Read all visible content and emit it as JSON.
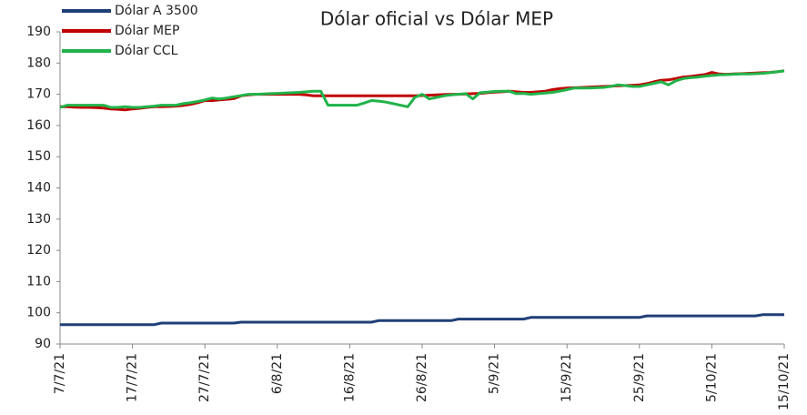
{
  "chart_data": {
    "type": "line",
    "title": "Dólar oficial vs Dólar MEP",
    "categories": [
      "7/7/21",
      null,
      null,
      null,
      null,
      null,
      null,
      null,
      null,
      null,
      "17/7/21",
      null,
      null,
      null,
      null,
      null,
      null,
      null,
      null,
      null,
      "27/7/21",
      null,
      null,
      null,
      null,
      null,
      null,
      null,
      null,
      null,
      "6/8/21",
      null,
      null,
      null,
      null,
      null,
      null,
      null,
      null,
      null,
      "16/8/21",
      null,
      null,
      null,
      null,
      null,
      null,
      null,
      null,
      null,
      "26/8/21",
      null,
      null,
      null,
      null,
      null,
      null,
      null,
      null,
      null,
      "5/9/21",
      null,
      null,
      null,
      null,
      null,
      null,
      null,
      null,
      null,
      "15/9/21",
      null,
      null,
      null,
      null,
      null,
      null,
      null,
      null,
      null,
      "25/9/21",
      null,
      null,
      null,
      null,
      null,
      null,
      null,
      null,
      null,
      "5/10/21",
      null,
      null,
      null,
      null,
      null,
      null,
      null,
      null,
      null,
      "15/10/21"
    ],
    "series": [
      {
        "name": "Dólar A 3500",
        "color": "#1f3f77",
        "values": [
          96.2,
          96.2,
          96.2,
          96.2,
          96.2,
          96.2,
          96.2,
          96.2,
          96.2,
          96.2,
          96.2,
          96.2,
          96.2,
          96.2,
          96.7,
          96.7,
          96.7,
          96.7,
          96.7,
          96.7,
          96.7,
          96.7,
          96.7,
          96.7,
          96.7,
          97,
          97,
          97,
          97,
          97,
          97,
          97,
          97,
          97,
          97,
          97,
          97,
          97,
          97,
          97,
          97,
          97,
          97,
          97,
          97.5,
          97.5,
          97.5,
          97.5,
          97.5,
          97.5,
          97.5,
          97.5,
          97.5,
          97.5,
          97.5,
          98,
          98,
          98,
          98,
          98,
          98,
          98,
          98,
          98,
          98,
          98.5,
          98.5,
          98.5,
          98.5,
          98.5,
          98.5,
          98.5,
          98.5,
          98.5,
          98.5,
          98.5,
          98.5,
          98.5,
          98.5,
          98.5,
          98.5,
          99,
          99,
          99,
          99,
          99,
          99,
          99,
          99,
          99,
          99,
          99,
          99,
          99,
          99,
          99,
          99,
          99.4,
          99.4,
          99.4,
          99.4
        ]
      },
      {
        "name": "Dólar MEP",
        "color": "#c00000",
        "values": [
          166,
          166,
          165.9,
          165.8,
          165.8,
          165.7,
          165.6,
          165.3,
          165.2,
          165,
          165.3,
          165.5,
          165.8,
          166,
          166,
          166.1,
          166.2,
          166.4,
          166.8,
          167.3,
          168,
          168,
          168.2,
          168.4,
          168.6,
          169.5,
          169.8,
          170,
          170,
          170,
          170,
          170,
          170,
          170,
          169.8,
          169.5,
          169.5,
          169.5,
          169.5,
          169.5,
          169.5,
          169.5,
          169.5,
          169.5,
          169.5,
          169.5,
          169.5,
          169.5,
          169.5,
          169.5,
          169.6,
          169.7,
          169.8,
          169.9,
          170,
          170,
          170.1,
          170.2,
          170.3,
          170.5,
          170.7,
          170.8,
          171,
          170.8,
          170.6,
          170.6,
          170.8,
          171,
          171.5,
          171.8,
          172,
          172.1,
          172.2,
          172.3,
          172.4,
          172.5,
          172.6,
          172.7,
          172.8,
          172.9,
          173,
          173.4,
          174,
          174.5,
          174.6,
          175,
          175.5,
          175.7,
          176,
          176.3,
          177,
          176.5,
          176.4,
          176.5,
          176.6,
          176.7,
          176.8,
          176.9,
          177,
          177.2,
          177.5
        ]
      },
      {
        "name": "Dólar CCL",
        "color": "#21b34a",
        "values": [
          165.8,
          166.5,
          166.5,
          166.5,
          166.5,
          166.5,
          166.5,
          165.8,
          165.8,
          166,
          165.8,
          165.8,
          166,
          166.2,
          166.5,
          166.5,
          166.5,
          167,
          167.3,
          167.7,
          168.2,
          168.8,
          168.5,
          168.8,
          169.2,
          169.6,
          170,
          170,
          170.1,
          170.2,
          170.3,
          170.4,
          170.5,
          170.6,
          170.8,
          171,
          171,
          166.5,
          166.5,
          166.5,
          166.5,
          166.5,
          167.2,
          168,
          167.8,
          167.5,
          167,
          166.5,
          166,
          169,
          170,
          168.5,
          169,
          169.5,
          169.8,
          170,
          170.2,
          168.5,
          170.5,
          170.7,
          170.9,
          171,
          171,
          170.2,
          170.3,
          170,
          170.2,
          170.4,
          170.6,
          171,
          171.5,
          172,
          172,
          172,
          172.1,
          172.2,
          172.5,
          173,
          172.8,
          172.5,
          172.5,
          173,
          173.5,
          174,
          173,
          174.3,
          175,
          175.3,
          175.5,
          175.8,
          176,
          176.2,
          176.3,
          176.4,
          176.5,
          176.5,
          176.6,
          176.7,
          176.9,
          177.2,
          177.5
        ]
      }
    ],
    "ylim": [
      90,
      190
    ],
    "yticks": [
      90,
      100,
      110,
      120,
      130,
      140,
      150,
      160,
      170,
      180,
      190
    ],
    "legend": "top-left"
  }
}
